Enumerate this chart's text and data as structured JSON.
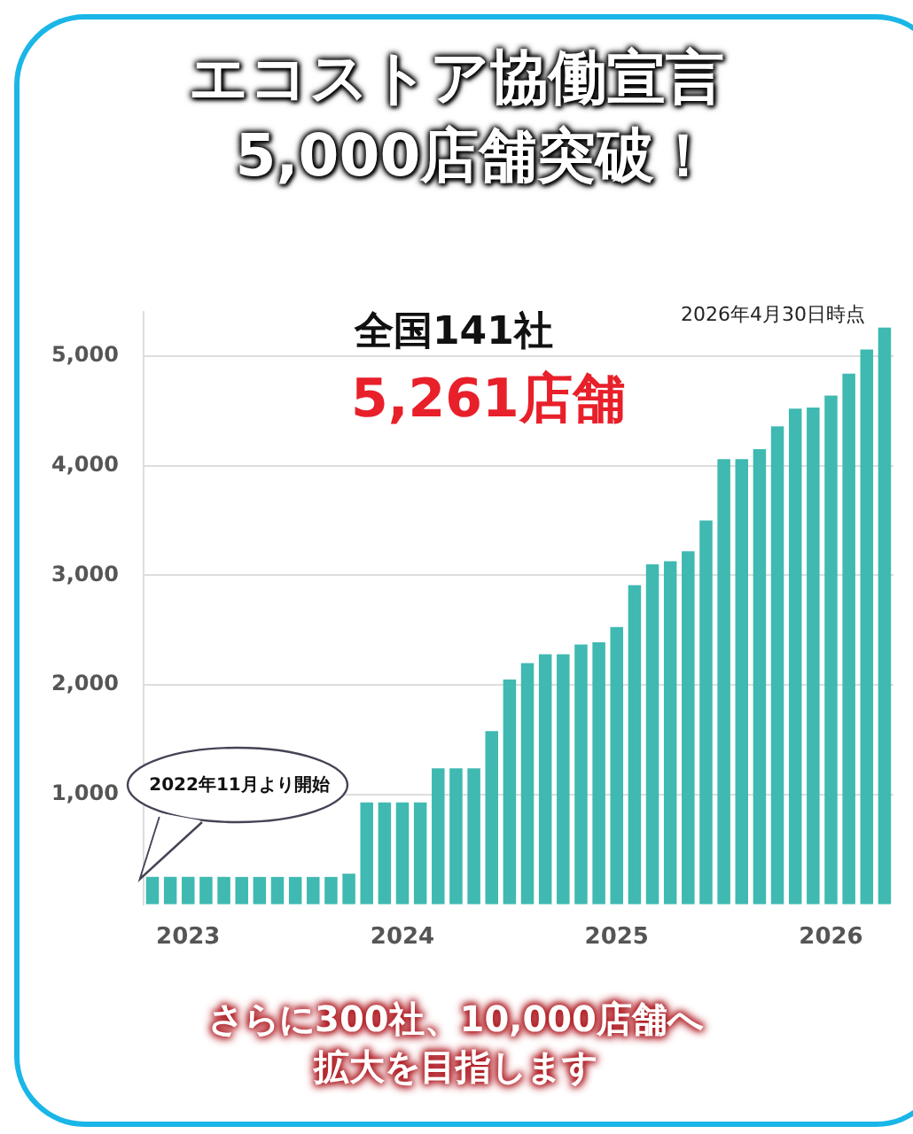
{
  "chart_data": {
    "type": "bar",
    "title": "エコストア協働宣言",
    "subtitle": "5,000店舗突破！",
    "categories": [
      null,
      null,
      "2023",
      null,
      null,
      null,
      null,
      null,
      null,
      null,
      null,
      null,
      null,
      null,
      "2024",
      null,
      null,
      null,
      null,
      null,
      null,
      null,
      null,
      null,
      null,
      null,
      "2025",
      null,
      null,
      null,
      null,
      null,
      null,
      null,
      null,
      null,
      null,
      null,
      "2026",
      null,
      null,
      null
    ],
    "values": [
      250,
      250,
      250,
      250,
      250,
      250,
      250,
      250,
      250,
      250,
      250,
      280,
      930,
      930,
      930,
      930,
      1240,
      1240,
      1240,
      1580,
      2050,
      2200,
      2280,
      2280,
      2370,
      2390,
      2530,
      2910,
      3100,
      3130,
      3220,
      3500,
      4060,
      4060,
      4150,
      4360,
      4520,
      4530,
      4640,
      4840,
      5060,
      5260
    ],
    "color": "#3fb9b1",
    "ylim": [
      0,
      5400
    ],
    "yticks": [
      {
        "value": 1000,
        "label": "1,000"
      },
      {
        "value": 2000,
        "label": "2,000"
      },
      {
        "value": 3000,
        "label": "3,000"
      },
      {
        "value": 4000,
        "label": "4,000"
      },
      {
        "value": 5000,
        "label": "5,000"
      }
    ],
    "grid": "y",
    "annotations": [
      "全国141社",
      "5,261店舗",
      "2026年4月30日時点",
      "2022年11月より開始",
      "さらに300社、10,000店舗へ",
      "拡大を目指します"
    ]
  }
}
